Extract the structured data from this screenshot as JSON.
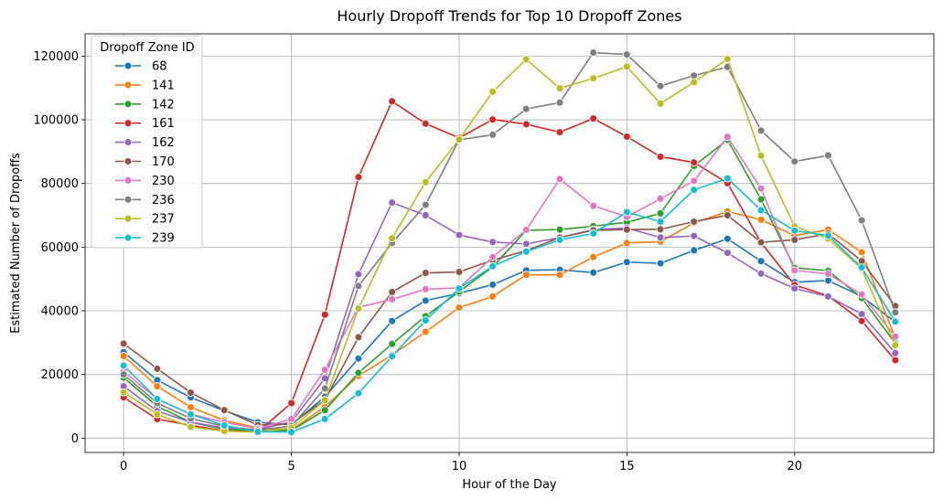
{
  "chart_data": {
    "type": "line",
    "title": "Hourly Dropoff Trends for Top 10 Dropoff Zones",
    "xlabel": "Hour of the Day",
    "ylabel": "Estimated Number of Dropoffs",
    "xlim": [
      -1.15,
      24.15
    ],
    "ylim": [
      -4500,
      127000
    ],
    "xticks": [
      0,
      5,
      10,
      15,
      20
    ],
    "yticks": [
      0,
      20000,
      40000,
      60000,
      80000,
      100000,
      120000
    ],
    "grid": true,
    "legend_title": "Dropoff Zone ID",
    "legend_position": "top-left",
    "x": [
      0,
      1,
      2,
      3,
      4,
      5,
      6,
      7,
      8,
      9,
      10,
      11,
      12,
      13,
      14,
      15,
      16,
      17,
      18,
      19,
      20,
      21,
      22,
      23
    ],
    "series": [
      {
        "name": "68",
        "color": "#1f77b4",
        "values": [
          27000,
          18200,
          12800,
          8600,
          5000,
          4200,
          13000,
          25000,
          36800,
          43200,
          45500,
          48200,
          52700,
          52900,
          52000,
          55300,
          54900,
          59000,
          62600,
          55600,
          49000,
          49500,
          44500,
          36500
        ]
      },
      {
        "name": "141",
        "color": "#ff7f0e",
        "values": [
          25800,
          16300,
          9700,
          5600,
          3200,
          2600,
          9800,
          19600,
          26100,
          33400,
          41000,
          44500,
          51300,
          51300,
          56900,
          61300,
          61700,
          67600,
          71200,
          68600,
          63600,
          65500,
          58400,
          31500
        ]
      },
      {
        "name": "142",
        "color": "#2ca02c",
        "values": [
          19000,
          10000,
          5000,
          2800,
          2300,
          2400,
          8800,
          20500,
          29600,
          38300,
          46000,
          53800,
          65300,
          65500,
          66600,
          67800,
          70600,
          85500,
          93700,
          75000,
          53500,
          52600,
          44000,
          29800
        ]
      },
      {
        "name": "161",
        "color": "#d62728",
        "values": [
          12800,
          6000,
          4000,
          2300,
          2000,
          11000,
          38800,
          82000,
          105800,
          98800,
          94300,
          100100,
          98600,
          96100,
          100400,
          94700,
          88400,
          86600,
          80100,
          61400,
          48100,
          44700,
          36800,
          24500
        ]
      },
      {
        "name": "162",
        "color": "#9467bd",
        "values": [
          16300,
          8500,
          5000,
          3200,
          2700,
          5100,
          18800,
          51500,
          74000,
          70000,
          63800,
          61600,
          61000,
          63000,
          65500,
          66000,
          63000,
          63500,
          58200,
          51700,
          47000,
          44500,
          39000,
          26700
        ]
      },
      {
        "name": "170",
        "color": "#8c564b",
        "values": [
          29700,
          21800,
          14300,
          8800,
          4100,
          4500,
          12000,
          31700,
          45900,
          51900,
          52200,
          55900,
          58900,
          63000,
          65300,
          65500,
          65600,
          68000,
          70000,
          61500,
          62300,
          64200,
          55600,
          41500
        ]
      },
      {
        "name": "230",
        "color": "#e377c2",
        "values": [
          21000,
          12300,
          7500,
          5000,
          3000,
          6000,
          21500,
          41100,
          43600,
          46800,
          47200,
          56900,
          65400,
          81400,
          73000,
          69500,
          75200,
          80800,
          94600,
          78400,
          52700,
          51600,
          45100,
          31900
        ]
      },
      {
        "name": "236",
        "color": "#7f7f7f",
        "values": [
          20000,
          11000,
          6200,
          3700,
          2500,
          3800,
          15600,
          47800,
          61300,
          73300,
          93700,
          95300,
          103400,
          105400,
          121100,
          120500,
          110600,
          113900,
          116600,
          96600,
          86900,
          88800,
          68400,
          39500
        ]
      },
      {
        "name": "237",
        "color": "#bcbd22",
        "values": [
          14400,
          7500,
          3500,
          2200,
          1900,
          3200,
          11900,
          40700,
          62800,
          80400,
          93800,
          108800,
          119000,
          109900,
          113000,
          116700,
          105100,
          111800,
          119100,
          88700,
          66500,
          62700,
          53200,
          29200
        ]
      },
      {
        "name": "239",
        "color": "#17becf",
        "values": [
          22800,
          12300,
          7500,
          4000,
          2000,
          1900,
          6000,
          14100,
          25700,
          37000,
          47000,
          54000,
          58600,
          62300,
          64300,
          71000,
          68000,
          78000,
          81600,
          71600,
          65200,
          63600,
          53600,
          36600
        ]
      }
    ]
  }
}
